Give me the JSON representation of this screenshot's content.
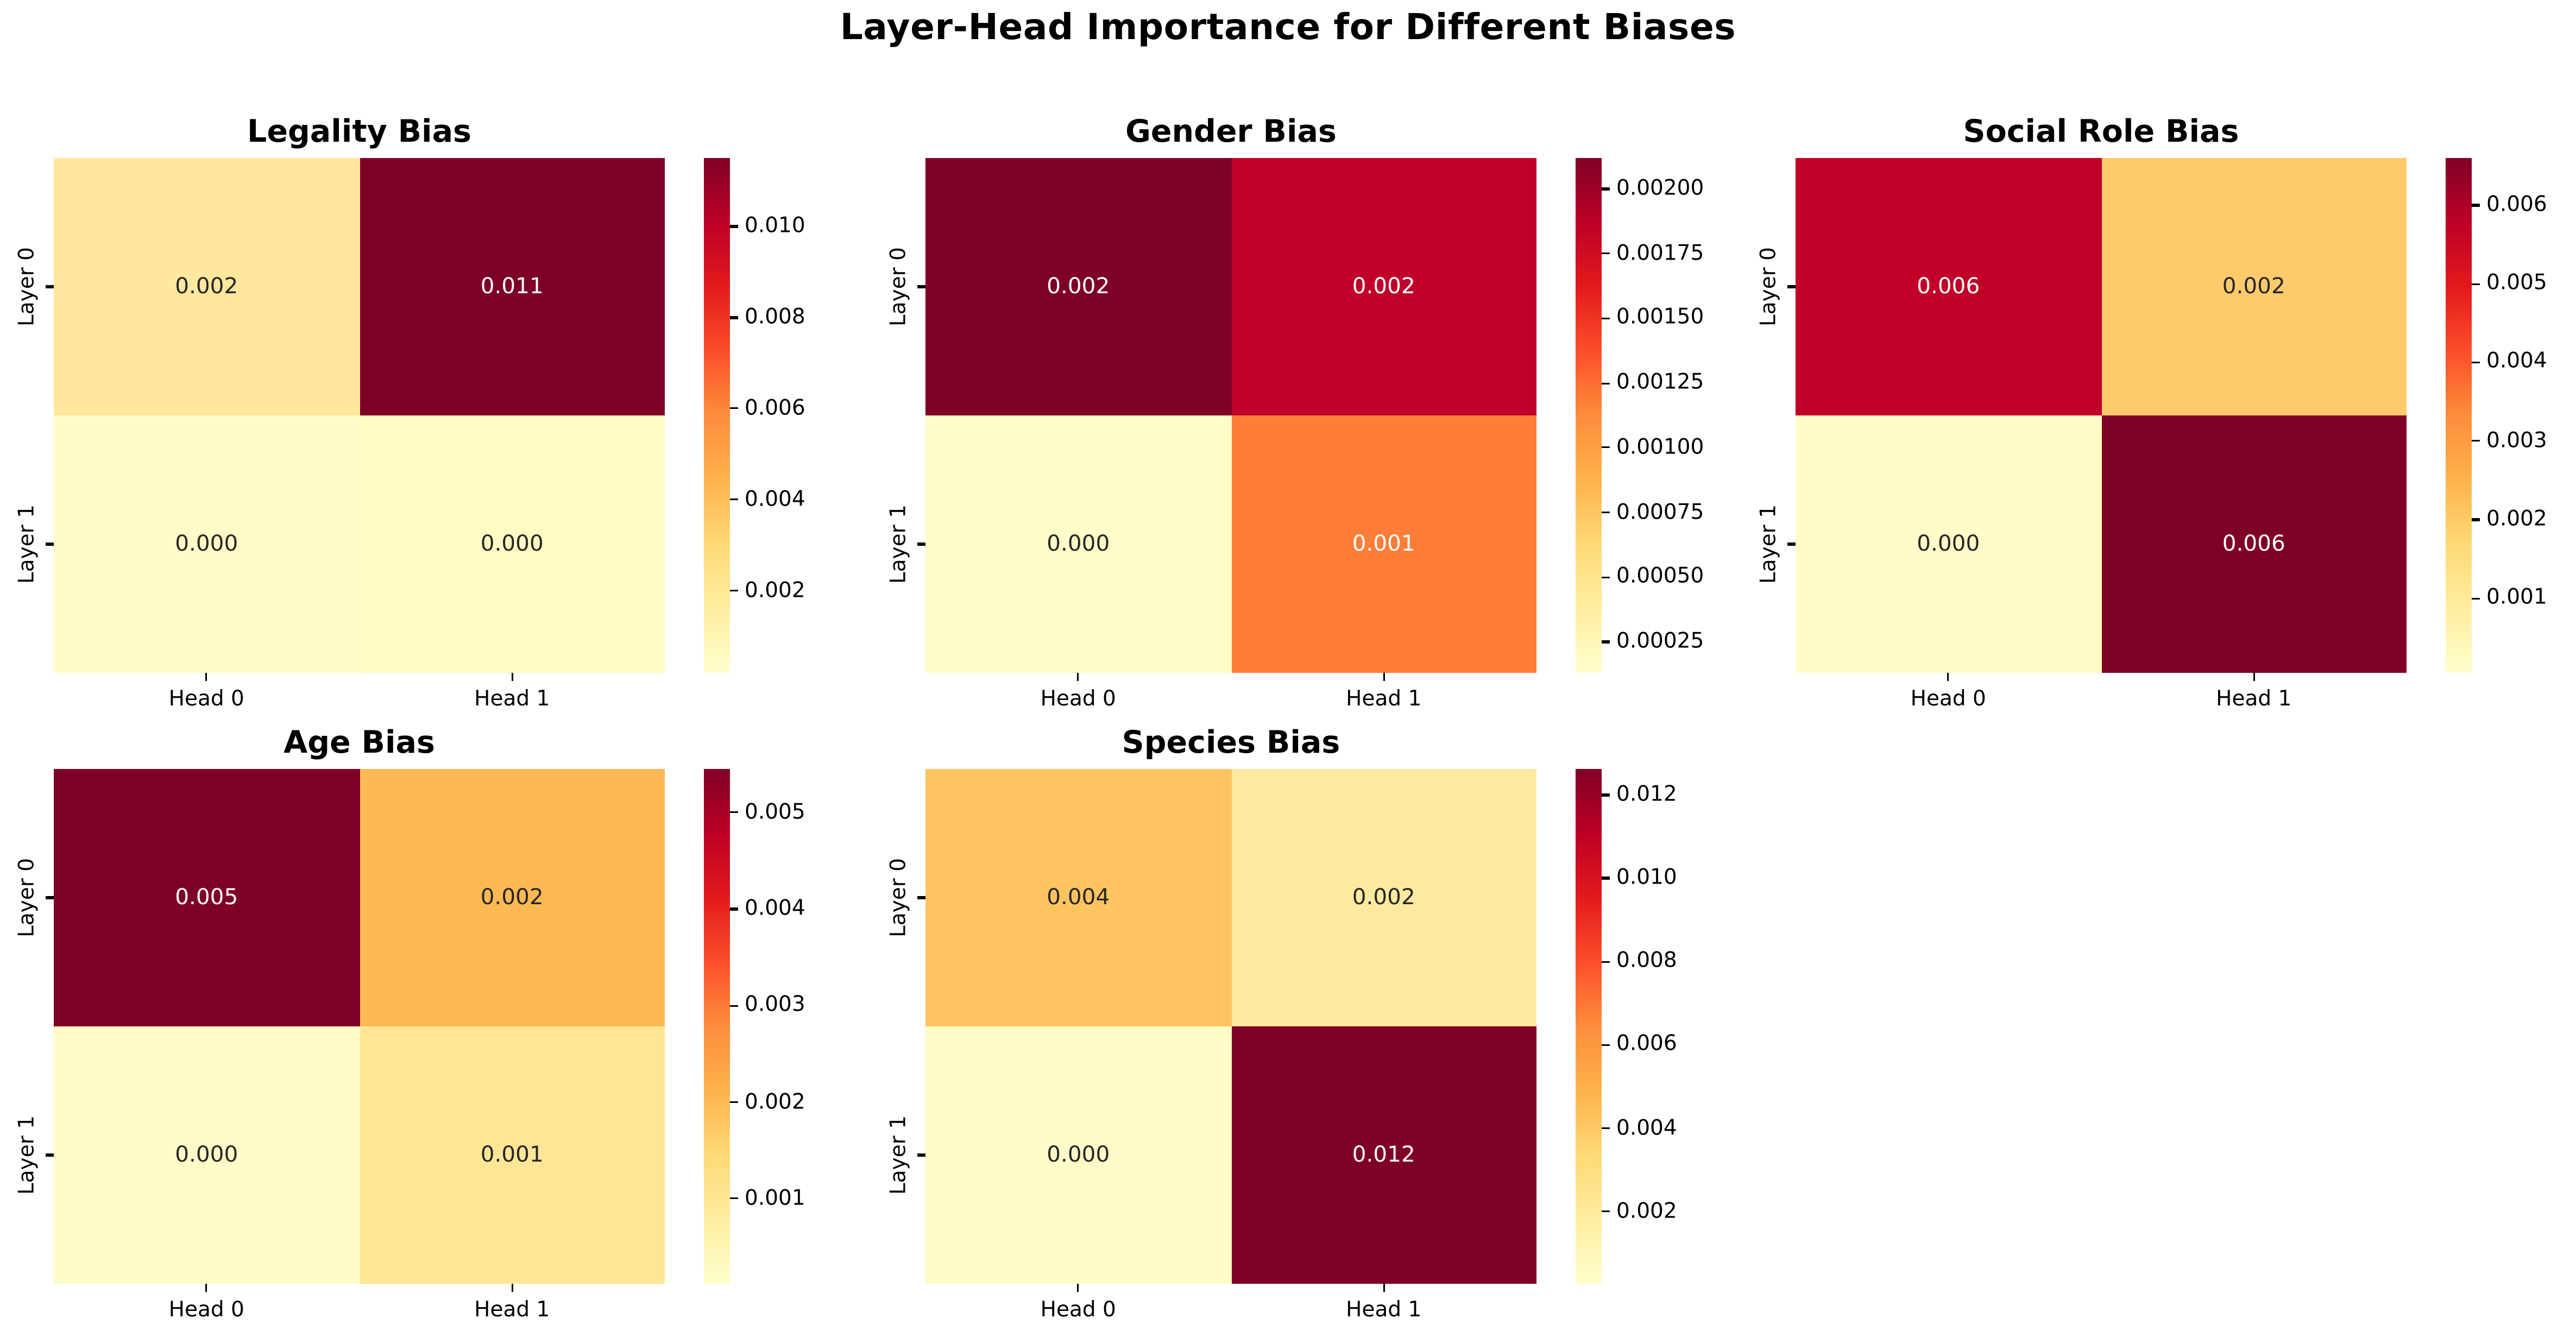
{
  "figure": {
    "suptitle": "Layer-Head Importance for Different Biases",
    "background_color": "#ffffff",
    "text_color": "#000000"
  },
  "colormap": {
    "name": "YlOrRd",
    "stops": [
      "#ffffcc",
      "#ffeda0",
      "#fed976",
      "#feb24c",
      "#fd8d3c",
      "#fc4e2a",
      "#e31a1c",
      "#bd0026",
      "#800026"
    ]
  },
  "chart_data": [
    {
      "type": "heatmap",
      "title": "Legality Bias",
      "row": 0,
      "col": 0,
      "x_tick_labels": [
        "Head 0",
        "Head 1"
      ],
      "y_tick_labels": [
        "Layer 0",
        "Layer 1"
      ],
      "values": [
        [
          0.002,
          0.011
        ],
        [
          0.0,
          0.0
        ]
      ],
      "annotations": [
        [
          "0.002",
          "0.011"
        ],
        [
          "0.000",
          "0.000"
        ]
      ],
      "cell_colors": [
        [
          "#ffe79e",
          "#7f0026"
        ],
        [
          "#fffcc7",
          "#fffbc3"
        ]
      ],
      "colorbar": {
        "vmin": 0.0002,
        "vmax": 0.0115,
        "ticks": [
          0.002,
          0.004,
          0.006,
          0.008,
          0.01
        ],
        "tick_labels": [
          "0.002",
          "0.004",
          "0.006",
          "0.008",
          "0.010"
        ]
      }
    },
    {
      "type": "heatmap",
      "title": "Gender Bias",
      "row": 0,
      "col": 1,
      "x_tick_labels": [
        "Head 0",
        "Head 1"
      ],
      "y_tick_labels": [
        "Layer 0",
        "Layer 1"
      ],
      "values": [
        [
          0.002,
          0.002
        ],
        [
          0.0,
          0.001
        ]
      ],
      "annotations": [
        [
          "0.002",
          "0.002"
        ],
        [
          "0.000",
          "0.001"
        ]
      ],
      "cell_colors": [
        [
          "#7f0026",
          "#c00029"
        ],
        [
          "#fffdc8",
          "#fd7d39"
        ]
      ],
      "colorbar": {
        "vmin": 0.00013,
        "vmax": 0.00212,
        "ticks": [
          0.00025,
          0.0005,
          0.00075,
          0.001,
          0.00125,
          0.0015,
          0.00175,
          0.002
        ],
        "tick_labels": [
          "0.00025",
          "0.00050",
          "0.00075",
          "0.00100",
          "0.00125",
          "0.00150",
          "0.00175",
          "0.00200"
        ]
      }
    },
    {
      "type": "heatmap",
      "title": "Social Role Bias",
      "row": 0,
      "col": 2,
      "x_tick_labels": [
        "Head 0",
        "Head 1"
      ],
      "y_tick_labels": [
        "Layer 0",
        "Layer 1"
      ],
      "values": [
        [
          0.006,
          0.002
        ],
        [
          0.0,
          0.006
        ]
      ],
      "annotations": [
        [
          "0.006",
          "0.002"
        ],
        [
          "0.000",
          "0.006"
        ]
      ],
      "cell_colors": [
        [
          "#c00028",
          "#ffca6b"
        ],
        [
          "#fffcc7",
          "#7f0026"
        ]
      ],
      "colorbar": {
        "vmin": 5e-05,
        "vmax": 0.0066,
        "ticks": [
          0.001,
          0.002,
          0.003,
          0.004,
          0.005,
          0.006
        ],
        "tick_labels": [
          "0.001",
          "0.002",
          "0.003",
          "0.004",
          "0.005",
          "0.006"
        ]
      }
    },
    {
      "type": "heatmap",
      "title": "Age Bias",
      "row": 1,
      "col": 0,
      "x_tick_labels": [
        "Head 0",
        "Head 1"
      ],
      "y_tick_labels": [
        "Layer 0",
        "Layer 1"
      ],
      "values": [
        [
          0.005,
          0.002
        ],
        [
          0.0,
          0.001
        ]
      ],
      "annotations": [
        [
          "0.005",
          "0.002"
        ],
        [
          "0.000",
          "0.001"
        ]
      ],
      "cell_colors": [
        [
          "#7f0026",
          "#fdb954"
        ],
        [
          "#fffcc7",
          "#fee695"
        ]
      ],
      "colorbar": {
        "vmin": 0.00012,
        "vmax": 0.00545,
        "ticks": [
          0.001,
          0.002,
          0.003,
          0.004,
          0.005
        ],
        "tick_labels": [
          "0.001",
          "0.002",
          "0.003",
          "0.004",
          "0.005"
        ]
      }
    },
    {
      "type": "heatmap",
      "title": "Species Bias",
      "row": 1,
      "col": 1,
      "x_tick_labels": [
        "Head 0",
        "Head 1"
      ],
      "y_tick_labels": [
        "Layer 0",
        "Layer 1"
      ],
      "values": [
        [
          0.004,
          0.002
        ],
        [
          0.0,
          0.012
        ]
      ],
      "annotations": [
        [
          "0.004",
          "0.002"
        ],
        [
          "0.000",
          "0.012"
        ]
      ],
      "cell_colors": [
        [
          "#fec460",
          "#ffe99e"
        ],
        [
          "#fffcc7",
          "#7f0026"
        ]
      ],
      "colorbar": {
        "vmin": 0.00027,
        "vmax": 0.01262,
        "ticks": [
          0.002,
          0.004,
          0.006,
          0.008,
          0.01,
          0.012
        ],
        "tick_labels": [
          "0.002",
          "0.004",
          "0.006",
          "0.008",
          "0.010",
          "0.012"
        ]
      }
    }
  ]
}
